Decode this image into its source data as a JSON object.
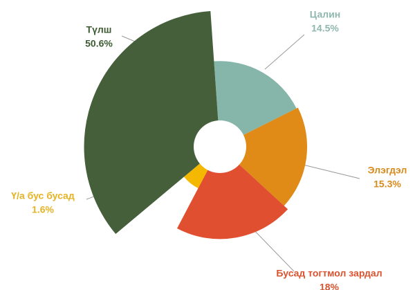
{
  "chart_data": {
    "type": "pie",
    "categories": [
      "Цалин",
      "Элэгдэл",
      "Бусад тогтмол зардал",
      "Ү/а бус бусад",
      "Түлш"
    ],
    "values": [
      14.5,
      15.3,
      18,
      1.6,
      50.6
    ],
    "value_labels": [
      "14.5%",
      "15.3%",
      "18%",
      "1.6%",
      "50.6%"
    ],
    "colors": [
      "#86b5a9",
      "#e08b17",
      "#e04f30",
      "#f5b800",
      "#445f3a"
    ]
  }
}
